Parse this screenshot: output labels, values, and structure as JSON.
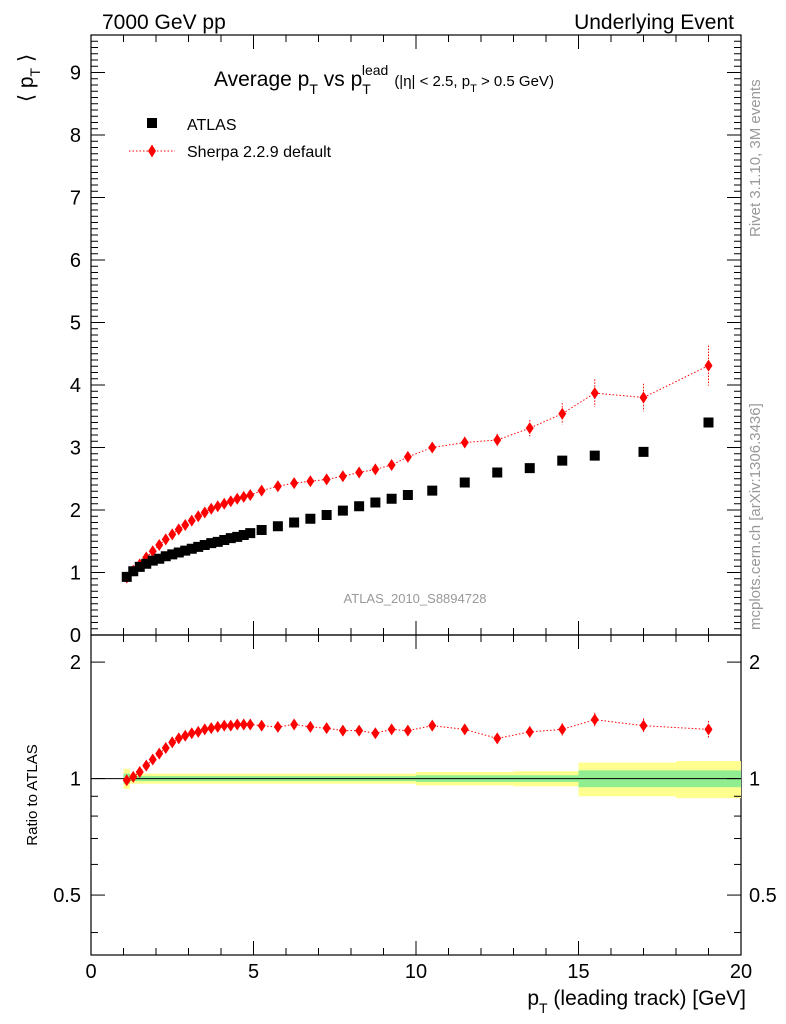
{
  "header": {
    "left": "7000 GeV pp",
    "right": "Underlying Event"
  },
  "title": {
    "main": "Average p",
    "main_sub": "T",
    "vs": " vs p",
    "vs_sub": "T",
    "vs_sup": "lead",
    "cut": "(|η| < 2.5, p",
    "cut_sub": "T",
    "cut_end": " > 0.5 GeV)"
  },
  "side_labels": {
    "rivet": "Rivet 3.1.10,  3M events",
    "mcplots": "mcplots.cern.ch [arXiv:1306.3436]"
  },
  "analysis_id": "ATLAS_2010_S8894728",
  "colors": {
    "data": "#000000",
    "mc": "#ff0000",
    "band_inner": "#90ee90",
    "band_outer": "#ffff90",
    "text_gray": "#999999"
  },
  "chart_data": [
    {
      "type": "scatter",
      "panel": "main",
      "ylabel": "⟨ p",
      "ylabel_sub": "T",
      "ylabel_end": " ⟩",
      "xlim": [
        0,
        20
      ],
      "ylim": [
        0,
        9.6
      ],
      "yticks": [
        "0",
        "1",
        "2",
        "3",
        "4",
        "5",
        "6",
        "7",
        "8",
        "9"
      ],
      "grid": false,
      "legend": "top-left",
      "series": [
        {
          "name": "ATLAS",
          "marker": "square",
          "x": [
            1.1,
            1.3,
            1.5,
            1.7,
            1.9,
            2.1,
            2.3,
            2.5,
            2.7,
            2.9,
            3.1,
            3.3,
            3.5,
            3.7,
            3.9,
            4.1,
            4.3,
            4.5,
            4.7,
            4.9,
            5.25,
            5.75,
            6.25,
            6.75,
            7.25,
            7.75,
            8.25,
            8.75,
            9.25,
            9.75,
            10.5,
            11.5,
            12.5,
            13.5,
            14.5,
            15.5,
            17.0,
            19.0
          ],
          "y": [
            0.93,
            1.02,
            1.09,
            1.14,
            1.19,
            1.22,
            1.26,
            1.29,
            1.32,
            1.35,
            1.38,
            1.41,
            1.44,
            1.47,
            1.49,
            1.52,
            1.55,
            1.57,
            1.6,
            1.63,
            1.68,
            1.74,
            1.8,
            1.86,
            1.92,
            1.99,
            2.06,
            2.12,
            2.18,
            2.24,
            2.31,
            2.44,
            2.6,
            2.67,
            2.79,
            2.87,
            2.93,
            3.4
          ]
        },
        {
          "name": "Sherpa 2.2.9 default",
          "marker": "diamond",
          "line": "dotted",
          "x": [
            1.1,
            1.3,
            1.5,
            1.7,
            1.9,
            2.1,
            2.3,
            2.5,
            2.7,
            2.9,
            3.1,
            3.3,
            3.5,
            3.7,
            3.9,
            4.1,
            4.3,
            4.5,
            4.7,
            4.9,
            5.25,
            5.75,
            6.25,
            6.75,
            7.25,
            7.75,
            8.25,
            8.75,
            9.25,
            9.75,
            10.5,
            11.5,
            12.5,
            13.5,
            14.5,
            15.5,
            17.0,
            19.0
          ],
          "y": [
            0.92,
            1.03,
            1.13,
            1.24,
            1.34,
            1.44,
            1.53,
            1.61,
            1.69,
            1.76,
            1.83,
            1.9,
            1.96,
            2.02,
            2.06,
            2.1,
            2.14,
            2.18,
            2.21,
            2.24,
            2.31,
            2.38,
            2.43,
            2.46,
            2.49,
            2.54,
            2.6,
            2.65,
            2.72,
            2.85,
            3.0,
            3.08,
            3.12,
            3.31,
            3.54,
            3.87,
            3.8,
            4.31
          ],
          "yerr": [
            0.02,
            0.02,
            0.02,
            0.02,
            0.02,
            0.02,
            0.02,
            0.02,
            0.02,
            0.02,
            0.02,
            0.02,
            0.02,
            0.02,
            0.02,
            0.02,
            0.02,
            0.02,
            0.02,
            0.02,
            0.03,
            0.03,
            0.03,
            0.04,
            0.04,
            0.04,
            0.05,
            0.05,
            0.06,
            0.07,
            0.08,
            0.09,
            0.1,
            0.13,
            0.17,
            0.22,
            0.22,
            0.32
          ]
        }
      ]
    },
    {
      "type": "scatter",
      "panel": "ratio",
      "ylabel": "Ratio to ATLAS",
      "xlabel": "p",
      "xlabel_sub": "T",
      "xlabel_end": " (leading track) [GeV]",
      "xlim": [
        0,
        20
      ],
      "ylim": [
        0.35,
        2.35
      ],
      "xticks": [
        "0",
        "5",
        "10",
        "15",
        "20"
      ],
      "yticks": [
        "0.5",
        "1",
        "2"
      ],
      "grid": false,
      "reference_line": 1.0,
      "bands": [
        {
          "x0": 1.0,
          "x1": 1.2,
          "inner": 0.03,
          "outer": 0.06
        },
        {
          "x0": 1.2,
          "x1": 10.0,
          "inner": 0.015,
          "outer": 0.03
        },
        {
          "x0": 10.0,
          "x1": 13.0,
          "inner": 0.02,
          "outer": 0.04
        },
        {
          "x0": 13.0,
          "x1": 15.0,
          "inner": 0.02,
          "outer": 0.045
        },
        {
          "x0": 15.0,
          "x1": 18.0,
          "inner": 0.05,
          "outer": 0.1
        },
        {
          "x0": 18.0,
          "x1": 20.0,
          "inner": 0.05,
          "outer": 0.11
        }
      ],
      "series": [
        {
          "name": "Sherpa 2.2.9 default",
          "marker": "diamond",
          "line": "dotted",
          "x": [
            1.1,
            1.3,
            1.5,
            1.7,
            1.9,
            2.1,
            2.3,
            2.5,
            2.7,
            2.9,
            3.1,
            3.3,
            3.5,
            3.7,
            3.9,
            4.1,
            4.3,
            4.5,
            4.7,
            4.9,
            5.25,
            5.75,
            6.25,
            6.75,
            7.25,
            7.75,
            8.25,
            8.75,
            9.25,
            9.75,
            10.5,
            11.5,
            12.5,
            13.5,
            14.5,
            15.5,
            17.0,
            19.0
          ],
          "y": [
            0.99,
            1.01,
            1.04,
            1.08,
            1.12,
            1.16,
            1.2,
            1.24,
            1.27,
            1.29,
            1.31,
            1.32,
            1.34,
            1.35,
            1.36,
            1.37,
            1.37,
            1.38,
            1.38,
            1.38,
            1.37,
            1.36,
            1.38,
            1.36,
            1.35,
            1.33,
            1.33,
            1.31,
            1.34,
            1.33,
            1.37,
            1.34,
            1.27,
            1.32,
            1.34,
            1.42,
            1.37,
            1.34
          ],
          "yerr": [
            0.01,
            0.01,
            0.01,
            0.01,
            0.01,
            0.01,
            0.01,
            0.01,
            0.01,
            0.01,
            0.01,
            0.01,
            0.01,
            0.01,
            0.01,
            0.01,
            0.01,
            0.01,
            0.01,
            0.01,
            0.015,
            0.015,
            0.015,
            0.015,
            0.02,
            0.02,
            0.02,
            0.02,
            0.02,
            0.02,
            0.025,
            0.03,
            0.035,
            0.04,
            0.05,
            0.06,
            0.06,
            0.07
          ]
        }
      ]
    }
  ]
}
